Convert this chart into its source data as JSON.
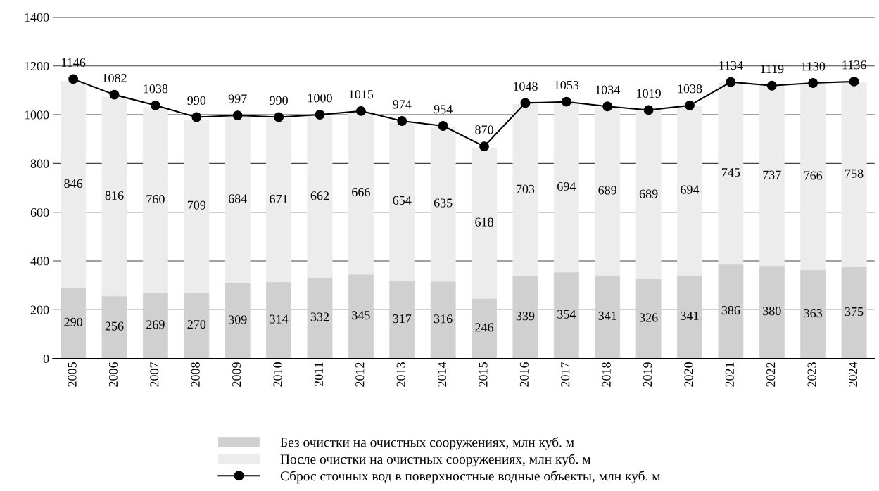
{
  "chart_data": {
    "type": "bar",
    "stacked": true,
    "categories": [
      "2005",
      "2006",
      "2007",
      "2008",
      "2009",
      "2010",
      "2011",
      "2012",
      "2013",
      "2014",
      "2015",
      "2016",
      "2017",
      "2018",
      "2019",
      "2020",
      "2021",
      "2022",
      "2023",
      "2024"
    ],
    "series": [
      {
        "name": "Без очистки на очистных сооружениях, млн куб. м",
        "color": "#d0d0d0",
        "values": [
          290,
          256,
          269,
          270,
          309,
          314,
          332,
          345,
          317,
          316,
          246,
          339,
          354,
          341,
          326,
          341,
          386,
          380,
          363,
          375
        ]
      },
      {
        "name": "После очистки на очистных сооружениях, млн куб. м",
        "color": "#ececec",
        "values": [
          846,
          816,
          760,
          709,
          684,
          671,
          662,
          666,
          654,
          635,
          618,
          703,
          694,
          689,
          689,
          694,
          745,
          737,
          766,
          758
        ]
      },
      {
        "name": "Сброс сточных вод в поверхностные водные объекты, млн куб. м",
        "type": "line",
        "color": "#000000",
        "marker": "circle",
        "values": [
          1146,
          1082,
          1038,
          990,
          997,
          990,
          1000,
          1015,
          974,
          954,
          870,
          1048,
          1053,
          1034,
          1019,
          1038,
          1134,
          1119,
          1130,
          1136
        ]
      }
    ],
    "ylim": [
      0,
      1400
    ],
    "yticks": [
      0,
      200,
      400,
      600,
      800,
      1000,
      1200,
      1400
    ],
    "grid": "y",
    "legend": "bottom",
    "data_labels": true
  }
}
